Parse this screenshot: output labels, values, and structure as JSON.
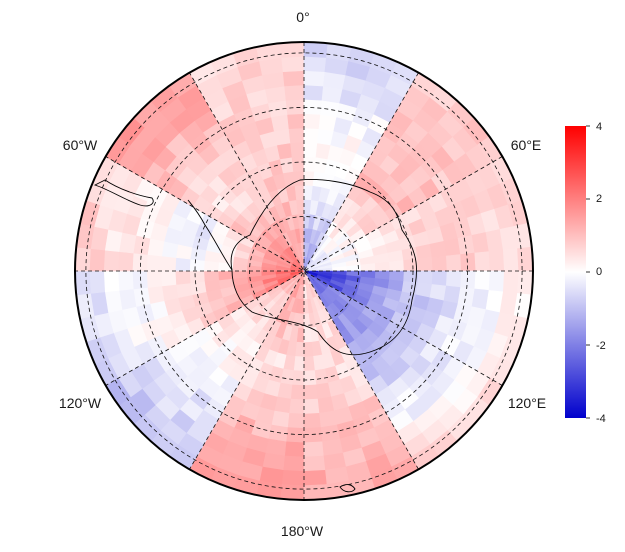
{
  "map": {
    "projection": "south-polar-stereographic",
    "longitude_labels": [
      "0°",
      "60°E",
      "120°E",
      "180°W",
      "120°W",
      "60°W"
    ],
    "graticule": {
      "meridians_every_deg": 30,
      "parallels": "dashed",
      "latitude_circles_count": 4
    },
    "fill_pattern": {
      "description_free": true,
      "sectors": [
        {
          "lon_from": -180,
          "lon_to": -150,
          "inner": 1.6,
          "mid": 0.4,
          "outer": 1.8
        },
        {
          "lon_from": -150,
          "lon_to": -120,
          "inner": 1.2,
          "mid": 0.2,
          "outer": -1.0
        },
        {
          "lon_from": -120,
          "lon_to": -90,
          "inner": 2.6,
          "mid": 0.6,
          "outer": -0.6
        },
        {
          "lon_from": -90,
          "lon_to": -60,
          "inner": 2.4,
          "mid": -0.3,
          "outer": 0.8
        },
        {
          "lon_from": -60,
          "lon_to": -30,
          "inner": 2.2,
          "mid": 0.4,
          "outer": 1.6
        },
        {
          "lon_from": -30,
          "lon_to": 0,
          "inner": 1.4,
          "mid": 0.8,
          "outer": 0.6
        },
        {
          "lon_from": 0,
          "lon_to": 30,
          "inner": -1.6,
          "mid": 0.3,
          "outer": -0.8
        },
        {
          "lon_from": 30,
          "lon_to": 60,
          "inner": -0.6,
          "mid": 1.0,
          "outer": 0.8
        },
        {
          "lon_from": 60,
          "lon_to": 90,
          "inner": -0.4,
          "mid": 0.6,
          "outer": 0.7
        },
        {
          "lon_from": 90,
          "lon_to": 120,
          "inner": -3.6,
          "mid": -1.0,
          "outer": 0.4
        },
        {
          "lon_from": 120,
          "lon_to": 150,
          "inner": -2.4,
          "mid": -1.2,
          "outer": 0.6
        },
        {
          "lon_from": 150,
          "lon_to": 180,
          "inner": 0.6,
          "mid": 0.5,
          "outer": 1.4
        }
      ]
    }
  },
  "colorbar": {
    "min": -4,
    "max": 4,
    "ticks": [
      "4",
      "2",
      "0",
      "-2",
      "-4"
    ],
    "tick_values": [
      4,
      2,
      0,
      -2,
      -4
    ],
    "colors": {
      "low": "#0000cc",
      "mid": "#ffffff",
      "high": "#ff0000"
    }
  }
}
